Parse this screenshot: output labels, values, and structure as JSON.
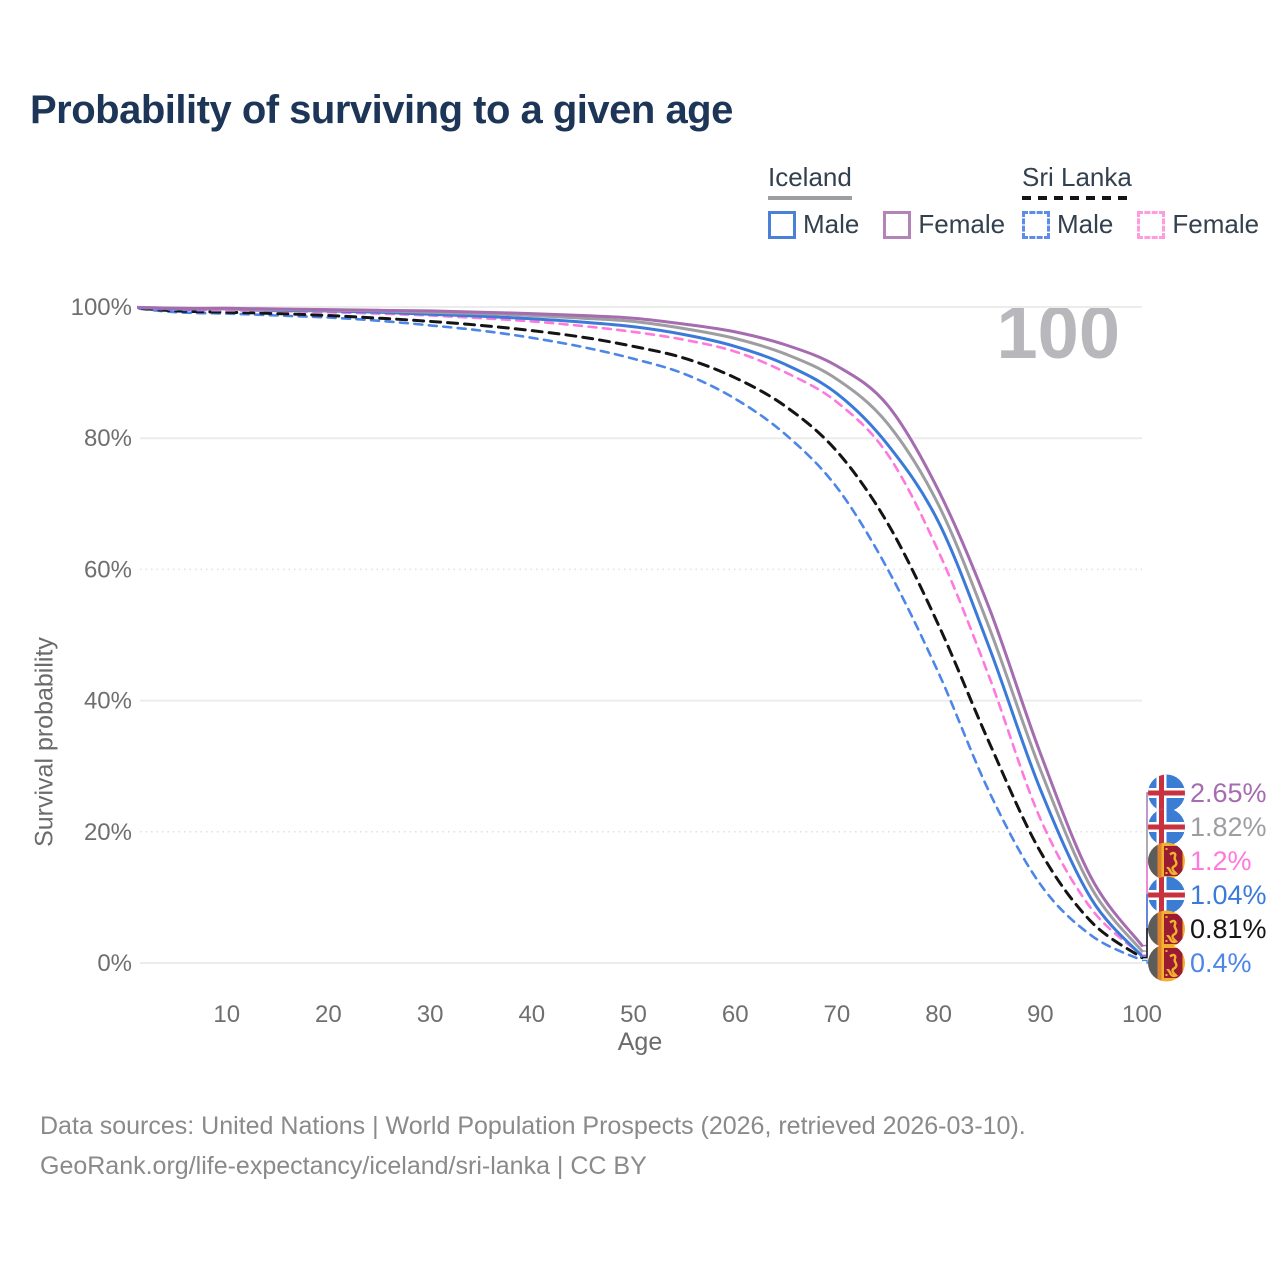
{
  "title": "Probability of surviving to a given age",
  "watermark": "100",
  "legend": {
    "groups": [
      {
        "label": "Iceland",
        "line_style": "solid",
        "line_color": "#9e9ea2",
        "items": [
          {
            "label": "Male",
            "color": "#4a80d8",
            "dash": false
          },
          {
            "label": "Female",
            "color": "#b284b8",
            "dash": false
          }
        ]
      },
      {
        "label": "Sri Lanka",
        "line_style": "dashed",
        "line_color": "#141414",
        "items": [
          {
            "label": "Male",
            "color": "#5e8ce6",
            "dash": true
          },
          {
            "label": "Female",
            "color": "#ff9ce0",
            "dash": true
          }
        ]
      }
    ]
  },
  "chart_data": {
    "type": "line",
    "title": "Probability of surviving to a given age",
    "xlabel": "Age",
    "ylabel": "Survival probability",
    "xlim": [
      0,
      100
    ],
    "ylim": [
      0,
      100
    ],
    "grid": "horizontal",
    "legend_position": "top-right",
    "x_ticks": [
      10,
      20,
      30,
      40,
      50,
      60,
      70,
      80,
      90,
      100
    ],
    "y_ticks": [
      {
        "value": 0,
        "label": "0%",
        "grid": "solid"
      },
      {
        "value": 20,
        "label": "20%",
        "grid": "dotted"
      },
      {
        "value": 40,
        "label": "40%",
        "grid": "solid"
      },
      {
        "value": 60,
        "label": "60%",
        "grid": "dotted"
      },
      {
        "value": 80,
        "label": "80%",
        "grid": "solid"
      },
      {
        "value": 100,
        "label": "100%",
        "grid": "solid"
      }
    ],
    "ages": [
      0,
      5,
      10,
      15,
      20,
      25,
      30,
      35,
      40,
      45,
      50,
      55,
      60,
      65,
      70,
      75,
      80,
      85,
      90,
      95,
      100
    ],
    "series": [
      {
        "name": "Sri Lanka Male",
        "country": "Sri Lanka",
        "sex": "Male",
        "color": "#4d86e8",
        "dash": true,
        "flag": "srilanka",
        "end_label": "0.4%",
        "values": [
          100,
          99.2,
          99.0,
          98.7,
          98.4,
          97.9,
          97.2,
          96.4,
          95.3,
          93.9,
          92.1,
          89.8,
          86.0,
          80.5,
          72.5,
          60.0,
          44.2,
          26.0,
          12.0,
          4.2,
          0.4
        ]
      },
      {
        "name": "Sri Lanka Both sexes",
        "country": "Sri Lanka",
        "sex": "Both",
        "color": "#141414",
        "dash": true,
        "flag": "srilanka",
        "end_label": "0.81%",
        "values": [
          100,
          99.4,
          99.2,
          99.0,
          98.7,
          98.3,
          97.8,
          97.2,
          96.4,
          95.4,
          94.0,
          92.2,
          89.2,
          84.8,
          78.0,
          67.0,
          51.5,
          33.5,
          17.0,
          6.3,
          0.81
        ]
      },
      {
        "name": "Sri Lanka Female",
        "country": "Sri Lanka",
        "sex": "Female",
        "color": "#ff78dd",
        "dash": true,
        "flag": "srilanka",
        "end_label": "1.2%",
        "values": [
          100,
          99.6,
          99.5,
          99.4,
          99.2,
          99.0,
          98.7,
          98.3,
          97.8,
          97.1,
          96.2,
          95.0,
          93.2,
          90.0,
          85.5,
          77.5,
          62.7,
          43.5,
          22.0,
          8.3,
          1.2
        ]
      },
      {
        "name": "Iceland Male",
        "country": "Iceland",
        "sex": "Male",
        "color": "#3b7ad8",
        "dash": false,
        "flag": "iceland",
        "end_label": "1.04%",
        "values": [
          100,
          99.7,
          99.7,
          99.5,
          99.4,
          99.2,
          98.9,
          98.6,
          98.2,
          97.7,
          97.0,
          95.8,
          94.0,
          91.2,
          86.8,
          79.0,
          67.2,
          48.0,
          26.5,
          9.8,
          1.04
        ]
      },
      {
        "name": "Iceland Both sexes",
        "country": "Iceland",
        "sex": "Both",
        "color": "#9e9ea2",
        "dash": false,
        "flag": "iceland",
        "end_label": "1.82%",
        "values": [
          100,
          99.8,
          99.7,
          99.6,
          99.5,
          99.4,
          99.2,
          99.0,
          98.7,
          98.3,
          97.8,
          96.7,
          95.2,
          92.8,
          89.0,
          82.2,
          69.8,
          51.0,
          29.5,
          11.5,
          1.82
        ]
      },
      {
        "name": "Iceland Female",
        "country": "Iceland",
        "sex": "Female",
        "color": "#a56cb0",
        "dash": false,
        "flag": "iceland",
        "end_label": "2.65%",
        "values": [
          100,
          99.8,
          99.8,
          99.7,
          99.6,
          99.5,
          99.4,
          99.2,
          99.0,
          98.7,
          98.3,
          97.4,
          96.2,
          94.2,
          91.0,
          85.0,
          72.0,
          54.0,
          32.0,
          13.0,
          2.65
        ]
      }
    ]
  },
  "footer": {
    "line1": "Data sources: United Nations | World Population Prospects (2026, retrieved 2026-03-10).",
    "line2": "GeoRank.org/life-expectancy/iceland/sri-lanka | CC BY"
  }
}
